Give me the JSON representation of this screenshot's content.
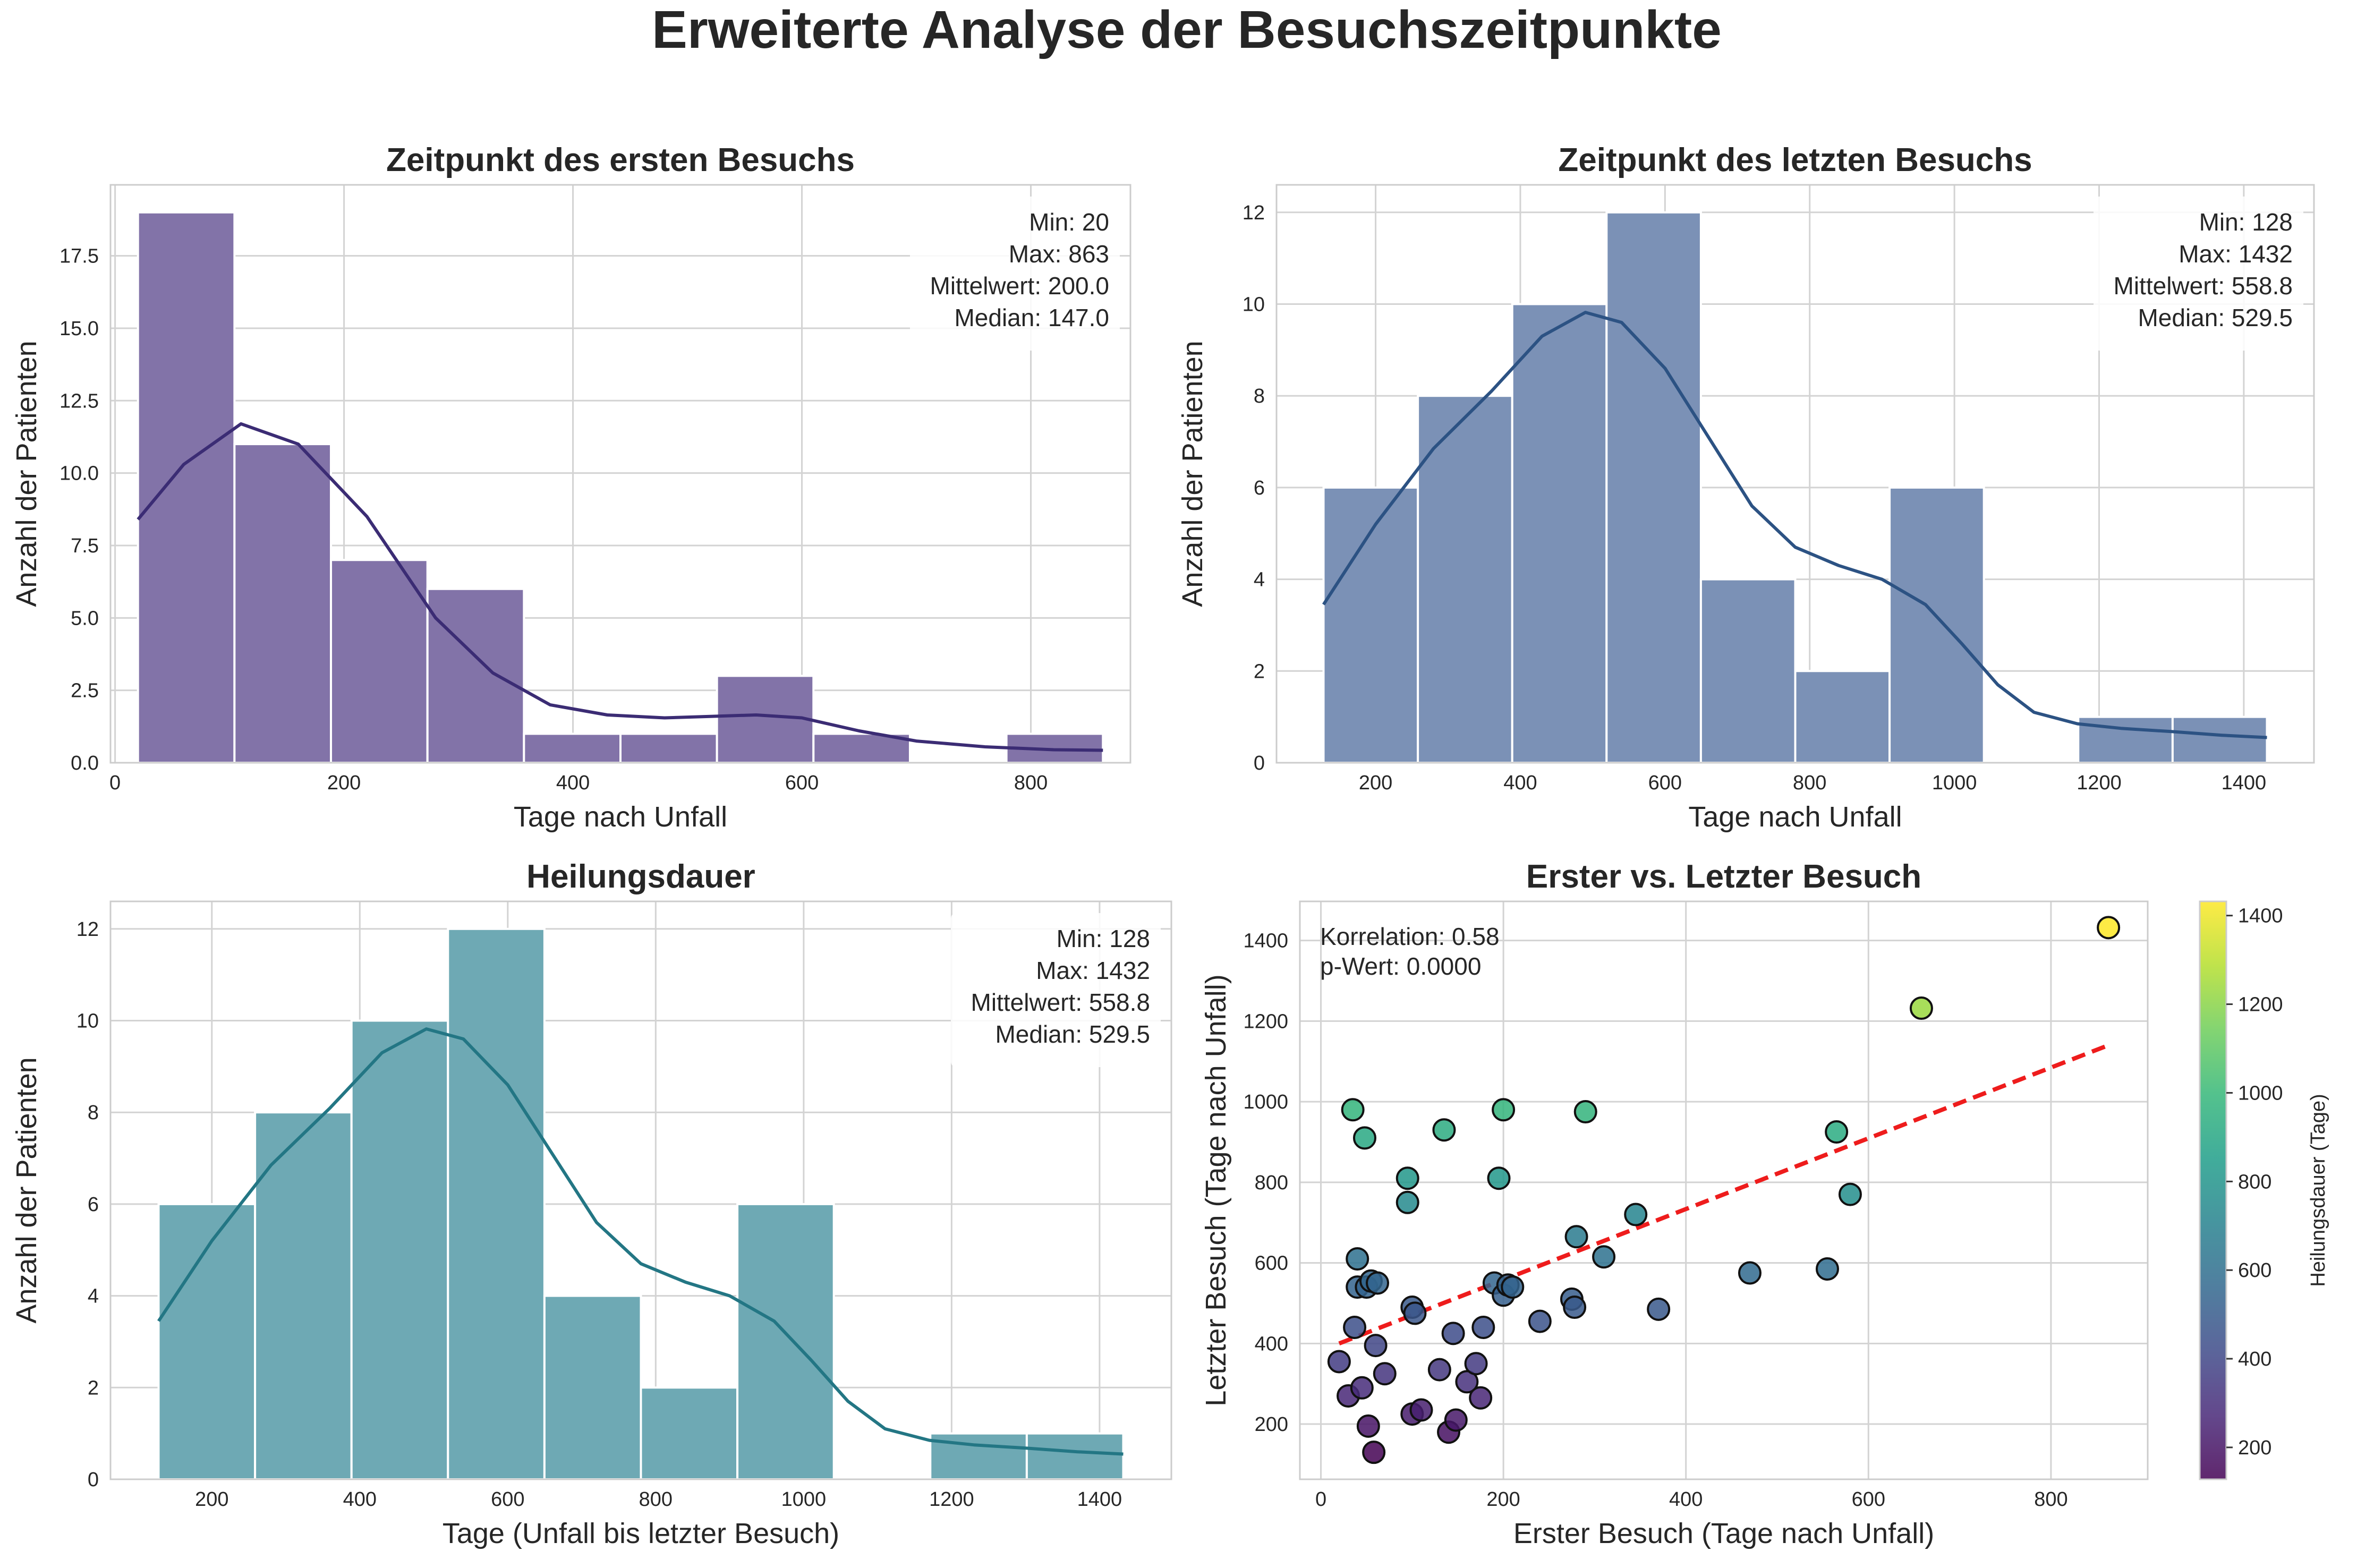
{
  "figure": {
    "suptitle": "Erweiterte Analyse der Besuchszeitpunkte"
  },
  "colors": {
    "grid": "#d3d3d3",
    "axes_edge": "#cccccc",
    "hist_first": "#8273a8",
    "kde_first": "#3b2c74",
    "hist_last": "#7b91b6",
    "kde_last": "#2c5283",
    "hist_heal": "#6ea9b4",
    "kde_heal": "#237684",
    "regression": "#ee1c1c"
  },
  "chart_data": [
    {
      "id": "first",
      "type": "bar",
      "title": "Zeitpunkt des ersten Besuchs",
      "xlabel": "Tage nach Unfall",
      "ylabel": "Anzahl der Patienten",
      "xlim": [
        -4,
        887
      ],
      "ylim": [
        0,
        19.95
      ],
      "xticks": [
        0,
        200,
        400,
        600,
        800
      ],
      "yticks": [
        0.0,
        2.5,
        5.0,
        7.5,
        10.0,
        12.5,
        15.0,
        17.5
      ],
      "ytick_labels": [
        "0.0",
        "2.5",
        "5.0",
        "7.5",
        "10.0",
        "12.5",
        "15.0",
        "17.5"
      ],
      "bin_edges": [
        20,
        104.3,
        188.6,
        272.9,
        357.2,
        441.5,
        525.8,
        610.1,
        694.4,
        778.7,
        863
      ],
      "counts": [
        19,
        11,
        7,
        6,
        1,
        1,
        3,
        1,
        0,
        1
      ],
      "kde": [
        [
          20,
          8.4
        ],
        [
          60,
          10.3
        ],
        [
          110,
          11.7
        ],
        [
          160,
          11.0
        ],
        [
          220,
          8.5
        ],
        [
          280,
          5.0
        ],
        [
          330,
          3.1
        ],
        [
          380,
          2.0
        ],
        [
          430,
          1.65
        ],
        [
          480,
          1.55
        ],
        [
          520,
          1.6
        ],
        [
          560,
          1.65
        ],
        [
          600,
          1.55
        ],
        [
          650,
          1.1
        ],
        [
          700,
          0.75
        ],
        [
          760,
          0.55
        ],
        [
          820,
          0.45
        ],
        [
          863,
          0.43
        ]
      ],
      "stats": [
        "Min: 20",
        "Max: 863",
        "Mittelwert: 200.0",
        "Median: 147.0"
      ]
    },
    {
      "id": "last",
      "type": "bar",
      "title": "Zeitpunkt des letzten Besuchs",
      "xlabel": "Tage nach Unfall",
      "ylabel": "Anzahl der Patienten",
      "xlim": [
        63,
        1497
      ],
      "ylim": [
        0,
        12.6
      ],
      "xticks": [
        200,
        400,
        600,
        800,
        1000,
        1200,
        1400
      ],
      "yticks": [
        0,
        2,
        4,
        6,
        8,
        10,
        12
      ],
      "ytick_labels": [
        "0",
        "2",
        "4",
        "6",
        "8",
        "10",
        "12"
      ],
      "bin_edges": [
        128,
        258.4,
        388.8,
        519.2,
        649.6,
        780,
        910.4,
        1040.8,
        1171.2,
        1301.6,
        1432
      ],
      "counts": [
        6,
        8,
        10,
        12,
        4,
        2,
        6,
        0,
        1,
        1
      ],
      "kde": [
        [
          128,
          3.45
        ],
        [
          200,
          5.2
        ],
        [
          280,
          6.85
        ],
        [
          360,
          8.1
        ],
        [
          430,
          9.3
        ],
        [
          490,
          9.82
        ],
        [
          540,
          9.6
        ],
        [
          600,
          8.6
        ],
        [
          660,
          7.1
        ],
        [
          720,
          5.6
        ],
        [
          780,
          4.7
        ],
        [
          840,
          4.3
        ],
        [
          900,
          4.0
        ],
        [
          960,
          3.45
        ],
        [
          1010,
          2.6
        ],
        [
          1060,
          1.7
        ],
        [
          1110,
          1.1
        ],
        [
          1170,
          0.85
        ],
        [
          1230,
          0.75
        ],
        [
          1300,
          0.68
        ],
        [
          1370,
          0.6
        ],
        [
          1432,
          0.55
        ]
      ],
      "stats": [
        "Min: 128",
        "Max: 1432",
        "Mittelwert: 558.8",
        "Median: 529.5"
      ]
    },
    {
      "id": "heal",
      "type": "bar",
      "title": "Heilungsdauer",
      "xlabel": "Tage (Unfall bis letzter Besuch)",
      "ylabel": "Anzahl der Patienten",
      "xlim": [
        63,
        1497
      ],
      "ylim": [
        0,
        12.6
      ],
      "xticks": [
        200,
        400,
        600,
        800,
        1000,
        1200,
        1400
      ],
      "yticks": [
        0,
        2,
        4,
        6,
        8,
        10,
        12
      ],
      "ytick_labels": [
        "0",
        "2",
        "4",
        "6",
        "8",
        "10",
        "12"
      ],
      "bin_edges": [
        128,
        258.4,
        388.8,
        519.2,
        649.6,
        780,
        910.4,
        1040.8,
        1171.2,
        1301.6,
        1432
      ],
      "counts": [
        6,
        8,
        10,
        12,
        4,
        2,
        6,
        0,
        1,
        1
      ],
      "kde": [
        [
          128,
          3.45
        ],
        [
          200,
          5.2
        ],
        [
          280,
          6.85
        ],
        [
          360,
          8.1
        ],
        [
          430,
          9.3
        ],
        [
          490,
          9.82
        ],
        [
          540,
          9.6
        ],
        [
          600,
          8.6
        ],
        [
          660,
          7.1
        ],
        [
          720,
          5.6
        ],
        [
          780,
          4.7
        ],
        [
          840,
          4.3
        ],
        [
          900,
          4.0
        ],
        [
          960,
          3.45
        ],
        [
          1010,
          2.6
        ],
        [
          1060,
          1.7
        ],
        [
          1110,
          1.1
        ],
        [
          1170,
          0.85
        ],
        [
          1230,
          0.75
        ],
        [
          1300,
          0.68
        ],
        [
          1370,
          0.6
        ],
        [
          1432,
          0.55
        ]
      ],
      "stats": [
        "Min: 128",
        "Max: 1432",
        "Mittelwert: 558.8",
        "Median: 529.5"
      ]
    },
    {
      "id": "scatter",
      "type": "scatter",
      "title": "Erster vs. Letzter Besuch",
      "xlabel": "Erster Besuch (Tage nach Unfall)",
      "ylabel": "Letzter Besuch (Tage nach Unfall)",
      "xlim": [
        -23,
        906
      ],
      "ylim": [
        63,
        1497
      ],
      "xticks": [
        0,
        200,
        400,
        600,
        800
      ],
      "yticks": [
        200,
        400,
        600,
        800,
        1000,
        1200,
        1400
      ],
      "annotation": [
        "Korrelation: 0.58",
        "p-Wert: 0.0000"
      ],
      "regression": {
        "x0": 20,
        "y0": 400,
        "x1": 863,
        "y1": 1140
      },
      "colorbar": {
        "label": "Heilungsdauer (Tage)",
        "range": [
          128,
          1432
        ],
        "ticks": [
          200,
          400,
          600,
          800,
          1000,
          1200,
          1400
        ]
      },
      "points": [
        [
          20,
          355
        ],
        [
          30,
          270
        ],
        [
          35,
          980
        ],
        [
          37,
          440
        ],
        [
          40,
          610
        ],
        [
          40,
          540
        ],
        [
          45,
          290
        ],
        [
          48,
          910
        ],
        [
          50,
          540
        ],
        [
          52,
          195
        ],
        [
          55,
          555
        ],
        [
          58,
          130
        ],
        [
          60,
          395
        ],
        [
          62,
          550
        ],
        [
          70,
          325
        ],
        [
          95,
          810
        ],
        [
          95,
          750
        ],
        [
          100,
          225
        ],
        [
          100,
          490
        ],
        [
          103,
          475
        ],
        [
          110,
          235
        ],
        [
          130,
          335
        ],
        [
          135,
          930
        ],
        [
          140,
          180
        ],
        [
          145,
          425
        ],
        [
          148,
          210
        ],
        [
          160,
          305
        ],
        [
          170,
          350
        ],
        [
          175,
          265
        ],
        [
          178,
          440
        ],
        [
          190,
          550
        ],
        [
          195,
          810
        ],
        [
          200,
          980
        ],
        [
          200,
          520
        ],
        [
          205,
          545
        ],
        [
          210,
          540
        ],
        [
          240,
          455
        ],
        [
          275,
          510
        ],
        [
          278,
          490
        ],
        [
          280,
          665
        ],
        [
          290,
          975
        ],
        [
          310,
          615
        ],
        [
          345,
          720
        ],
        [
          370,
          485
        ],
        [
          470,
          575
        ],
        [
          555,
          585
        ],
        [
          565,
          925
        ],
        [
          580,
          770
        ],
        [
          658,
          1232
        ],
        [
          863,
          1432
        ]
      ]
    }
  ]
}
